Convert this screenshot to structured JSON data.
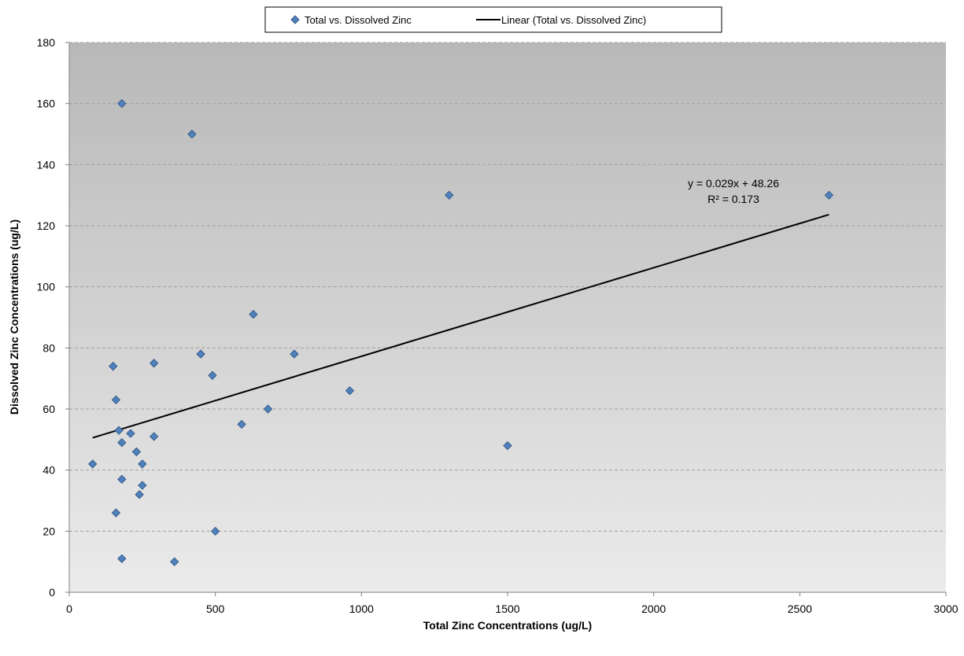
{
  "chart_data": {
    "type": "scatter",
    "xlabel": "Total Zinc Concentrations  (ug/L)",
    "ylabel": "Dissolved Zinc Concentrations  (ug/L)",
    "xlim": [
      0,
      3000
    ],
    "ylim": [
      0,
      180
    ],
    "x_ticks": [
      "0",
      "500",
      "1000",
      "1500",
      "2000",
      "2500",
      "3000"
    ],
    "y_ticks": [
      "0",
      "20",
      "40",
      "60",
      "80",
      "100",
      "120",
      "140",
      "160",
      "180"
    ],
    "grid": "horizontal dashed",
    "legend_position": "top",
    "series": [
      {
        "name": "Total vs. Dissolved Zinc",
        "marker": "diamond",
        "color": "#4f81bd",
        "points": [
          [
            80,
            42
          ],
          [
            150,
            74
          ],
          [
            160,
            63
          ],
          [
            160,
            26
          ],
          [
            170,
            53
          ],
          [
            180,
            49
          ],
          [
            180,
            37
          ],
          [
            180,
            11
          ],
          [
            180,
            160
          ],
          [
            210,
            52
          ],
          [
            230,
            46
          ],
          [
            240,
            32
          ],
          [
            250,
            42
          ],
          [
            250,
            35
          ],
          [
            290,
            75
          ],
          [
            290,
            51
          ],
          [
            360,
            10
          ],
          [
            420,
            150
          ],
          [
            450,
            78
          ],
          [
            490,
            71
          ],
          [
            500,
            20
          ],
          [
            590,
            55
          ],
          [
            630,
            91
          ],
          [
            680,
            60
          ],
          [
            770,
            78
          ],
          [
            960,
            66
          ],
          [
            1300,
            130
          ],
          [
            1500,
            48
          ],
          [
            2600,
            130
          ]
        ]
      }
    ],
    "trendline": {
      "name": "Linear (Total vs. Dissolved Zinc)",
      "type": "linear",
      "slope": 0.029,
      "intercept": 48.26,
      "x_range": [
        80,
        2600
      ],
      "color": "#000000",
      "equation_label": "y = 0.029x  + 48.26",
      "r2_label": "R² = 0.173"
    }
  }
}
